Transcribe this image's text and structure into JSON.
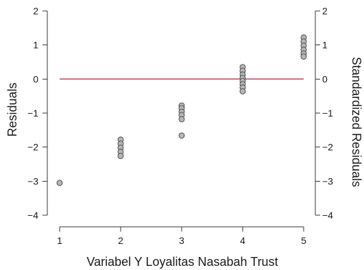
{
  "chart_data": {
    "type": "scatter",
    "xlabel": "Variabel Y Loyalitas Nasabah Trust",
    "ylabel": "Residuals",
    "ylabel_right": "Standardized Residuals",
    "xlim": [
      1,
      5
    ],
    "ylim": [
      -4,
      2
    ],
    "ylim_right": [
      -4,
      2
    ],
    "x_ticks": [
      1,
      2,
      3,
      4,
      5
    ],
    "y_ticks": [
      -4,
      -3,
      -2,
      -1,
      0,
      1,
      2
    ],
    "y_ticks_right": [
      -4,
      -3,
      -2,
      -1,
      0,
      1,
      2
    ],
    "reference_line": {
      "y": 0,
      "x_from": 1,
      "x_to": 5,
      "color": "#b5545c"
    },
    "point_color": "#b5b5b5",
    "point_stroke": "#444444",
    "grid": false,
    "legend": "none",
    "points": [
      {
        "x": 1,
        "y": -3.05
      },
      {
        "x": 2,
        "y": -1.78
      },
      {
        "x": 2,
        "y": -1.9
      },
      {
        "x": 2,
        "y": -2.02
      },
      {
        "x": 2,
        "y": -2.14
      },
      {
        "x": 2,
        "y": -2.26
      },
      {
        "x": 3,
        "y": -0.78
      },
      {
        "x": 3,
        "y": -0.86
      },
      {
        "x": 3,
        "y": -0.96
      },
      {
        "x": 3,
        "y": -1.06
      },
      {
        "x": 3,
        "y": -1.18
      },
      {
        "x": 3,
        "y": -1.66
      },
      {
        "x": 4,
        "y": 0.35
      },
      {
        "x": 4,
        "y": 0.24
      },
      {
        "x": 4,
        "y": 0.13
      },
      {
        "x": 4,
        "y": 0.03
      },
      {
        "x": 4,
        "y": -0.06
      },
      {
        "x": 4,
        "y": -0.15
      },
      {
        "x": 4,
        "y": -0.25
      },
      {
        "x": 4,
        "y": -0.36
      },
      {
        "x": 5,
        "y": 1.22
      },
      {
        "x": 5,
        "y": 1.1
      },
      {
        "x": 5,
        "y": 0.98
      },
      {
        "x": 5,
        "y": 0.86
      },
      {
        "x": 5,
        "y": 0.75
      },
      {
        "x": 5,
        "y": 0.66
      }
    ]
  }
}
